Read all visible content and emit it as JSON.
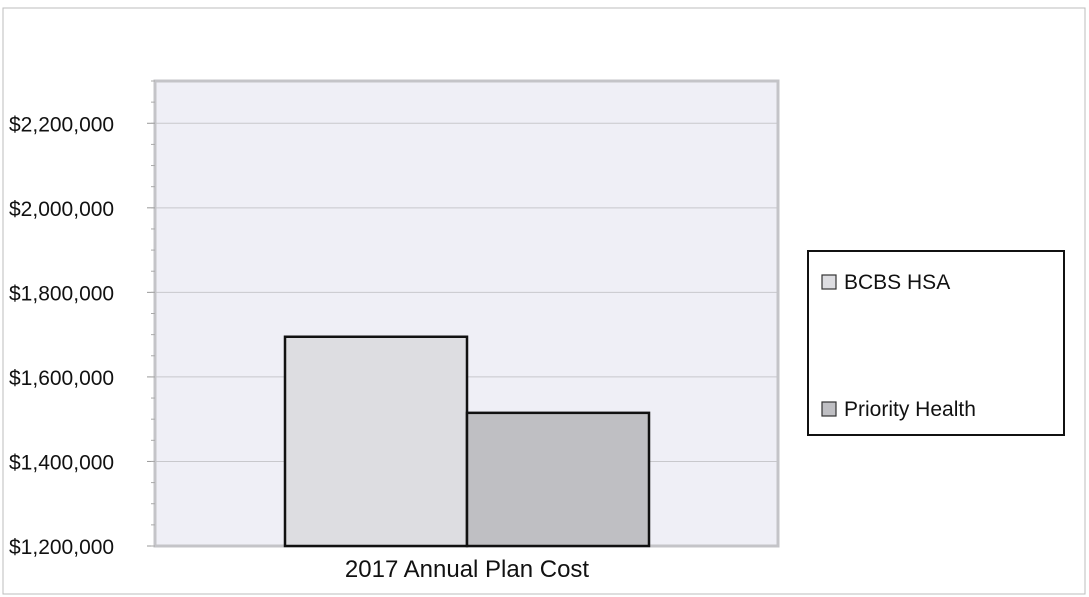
{
  "chart_data": {
    "type": "bar",
    "categories": [
      "2017 Annual Plan Cost"
    ],
    "series": [
      {
        "name": "BCBS HSA",
        "values": [
          1695000
        ],
        "color": "#dddde1"
      },
      {
        "name": "Priority Health",
        "values": [
          1515000
        ],
        "color": "#bfbfc3"
      }
    ],
    "ylim": [
      1200000,
      2300000
    ],
    "yticks": [
      1200000,
      1400000,
      1600000,
      1800000,
      2000000,
      2200000
    ],
    "ytick_labels": [
      "$1,200,000",
      "$1,400,000",
      "$1,600,000",
      "$1,800,000",
      "$2,000,000",
      "$2,200,000"
    ],
    "title": "",
    "xlabel": "",
    "ylabel": "",
    "grid": true,
    "legend_position": "right",
    "plot_background": "#efeff6",
    "gridline_color": "#c8c8cc"
  }
}
